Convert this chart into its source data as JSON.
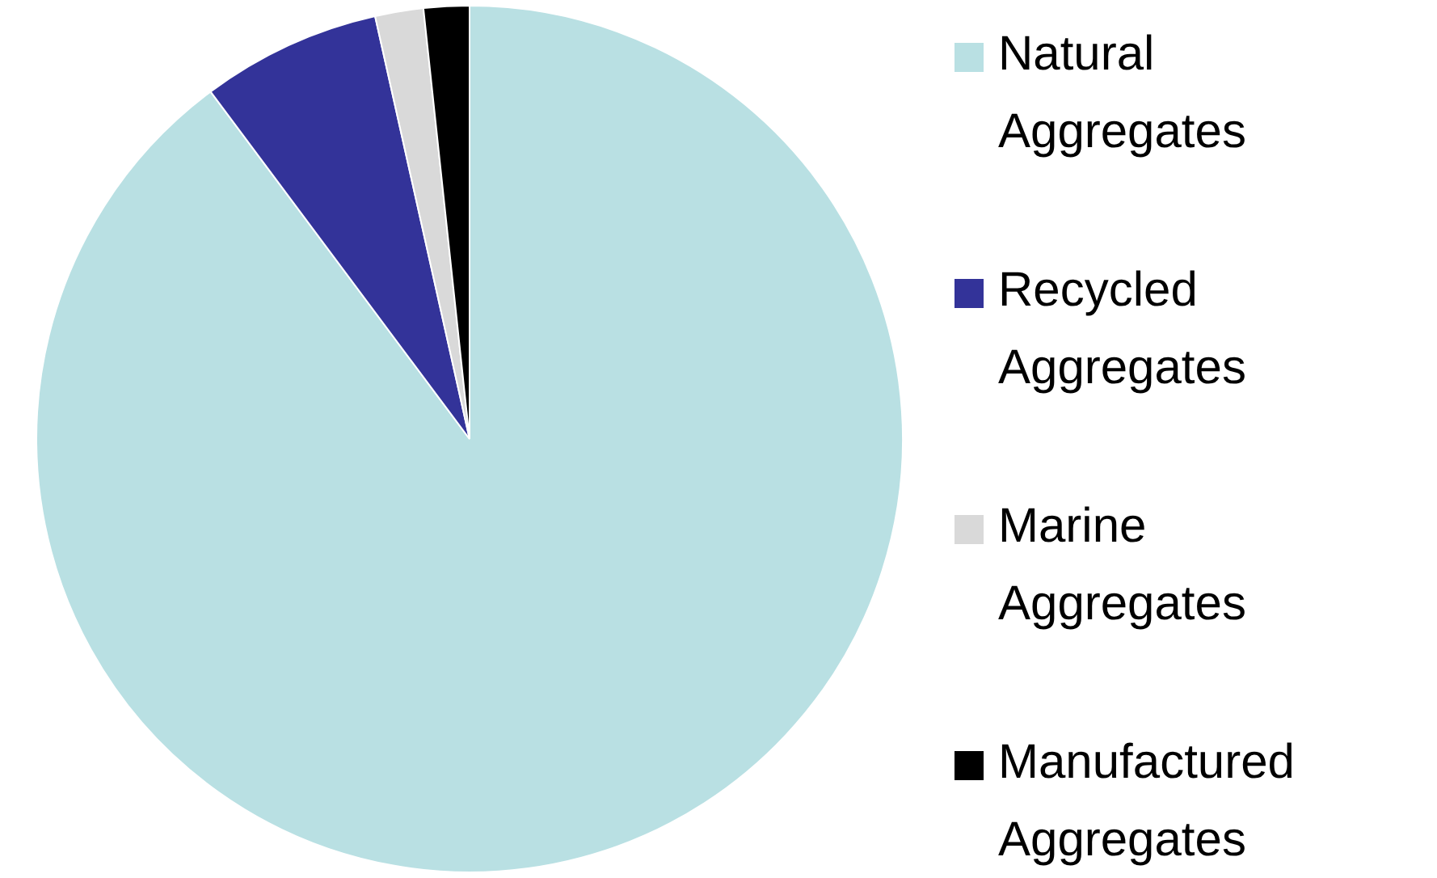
{
  "chart_data": {
    "type": "pie",
    "categories": [
      "Natural Aggregates",
      "Recycled Aggregates",
      "Marine Aggregates",
      "Manufactured Aggregates"
    ],
    "values": [
      89.8,
      6.7,
      1.8,
      1.7
    ],
    "colors": [
      "#b9e0e3",
      "#333399",
      "#d9d9d9",
      "#000000"
    ],
    "legend": "right"
  }
}
